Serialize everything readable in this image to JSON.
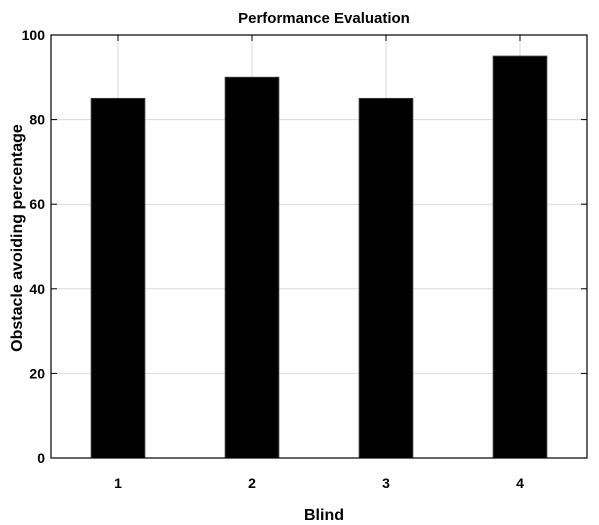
{
  "chart_data": {
    "type": "bar",
    "title": "Performance Evaluation",
    "xlabel": "Blind",
    "ylabel": "Obstacle avoiding percentage",
    "categories": [
      "1",
      "2",
      "3",
      "4"
    ],
    "values": [
      85,
      90,
      85,
      95
    ],
    "ylim": [
      0,
      100
    ],
    "yticks": [
      "0",
      "20",
      "40",
      "60",
      "80",
      "100"
    ],
    "grid": true,
    "bar_color": "#000000",
    "grid_color": "#d9d9d9"
  }
}
